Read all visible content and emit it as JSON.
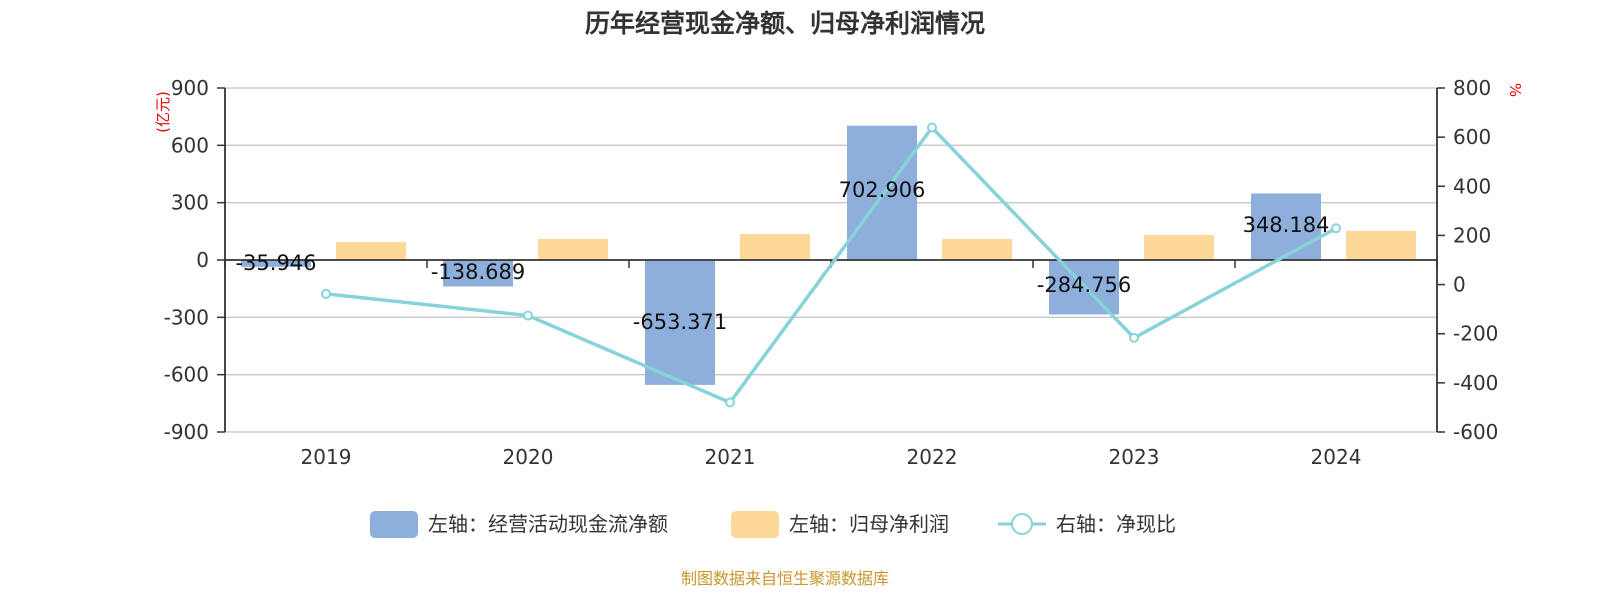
{
  "chart_data": {
    "type": "bar",
    "title": "历年经营现金净额、归母净利润情况",
    "categories": [
      "2019",
      "2020",
      "2021",
      "2022",
      "2023",
      "2024"
    ],
    "left_axis": {
      "label": "(亿元)",
      "ylim": [
        -900,
        900
      ],
      "ticks": [
        900,
        600,
        300,
        0,
        -300,
        -600,
        -900
      ]
    },
    "right_axis": {
      "label": "%",
      "ylim": [
        -600,
        800
      ],
      "ticks": [
        800,
        600,
        400,
        200,
        0,
        -200,
        -400,
        -600
      ]
    },
    "series": [
      {
        "name": "左轴：经营活动现金流净额",
        "type": "bar",
        "axis": "left",
        "color": "#8eaedb",
        "values": [
          -35.946,
          -138.689,
          -653.371,
          702.906,
          -284.756,
          348.184
        ],
        "labels": [
          "-35.946",
          "-138.689",
          "-653.371",
          "702.906",
          "-284.756",
          "348.184"
        ]
      },
      {
        "name": "左轴：归母净利润",
        "type": "bar",
        "axis": "left",
        "color": "#fdd898",
        "values": [
          94,
          110,
          136,
          110,
          131,
          152
        ]
      },
      {
        "name": "右轴：净现比",
        "type": "line",
        "axis": "right",
        "color": "#86d4d9",
        "values": [
          -38,
          -126,
          -480,
          639,
          -217,
          229
        ]
      }
    ],
    "grid": true,
    "legend_position": "bottom"
  },
  "footer": "制图数据来自恒生聚源数据库"
}
